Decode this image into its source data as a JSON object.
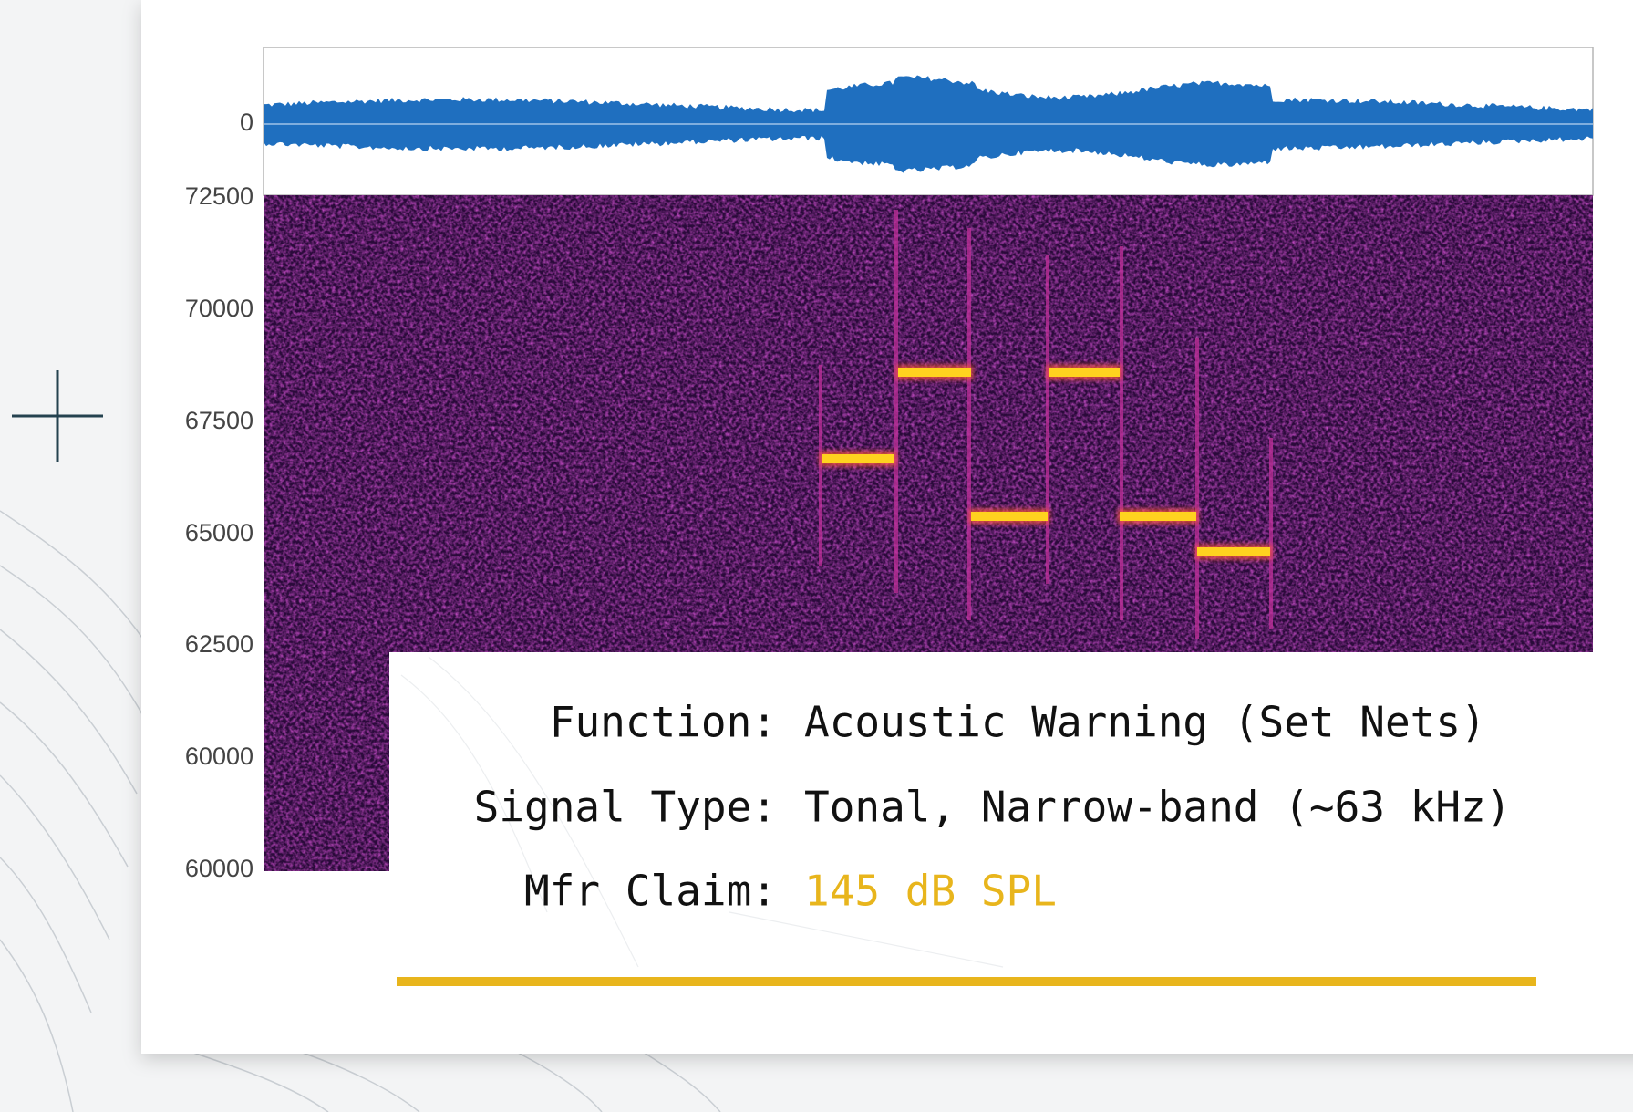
{
  "waveform": {
    "y_axis_labels": [
      "0"
    ]
  },
  "spectrogram": {
    "y_axis_labels": [
      "72500",
      "70000",
      "67500",
      "65000",
      "62500",
      "60000",
      "60000"
    ]
  },
  "info_card": {
    "rows": [
      {
        "label": "Function:",
        "value": "Acoustic Warning (Set Nets)"
      },
      {
        "label": "Signal Type:",
        "value": "Tonal, Narrow-band (~63 kHz)"
      },
      {
        "label": "Mfr Claim:",
        "value": "145 dB SPL"
      }
    ]
  }
}
